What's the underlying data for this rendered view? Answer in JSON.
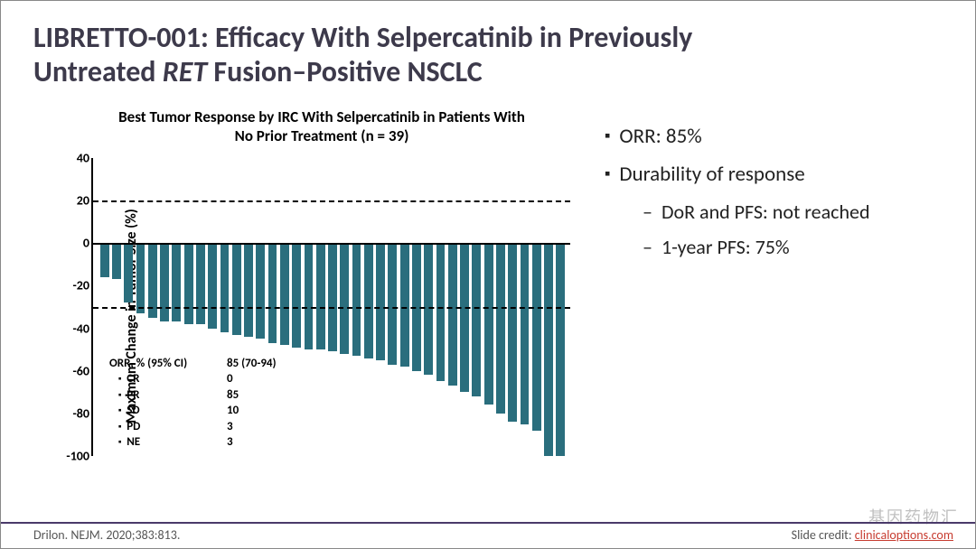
{
  "title_line1": "LIBRETTO-001: Efficacy With Selpercatinib in Previously",
  "title_line2a": "Untreated ",
  "title_line2_ital": "RET",
  "title_line2b": " Fusion–Positive NSCLC",
  "bullets": {
    "orr": "ORR: 85%",
    "dur": "Durability of response",
    "dor": "DoR and PFS: not reached",
    "pfs1y": "1-year PFS: 75%"
  },
  "footer_left": "Drilon. NEJM. 2020;383:813.",
  "footer_right_prefix": "Slide credit: ",
  "footer_link": "clinicaloptions.com",
  "watermark": "基因药物汇",
  "chart": {
    "title": "Best Tumor Response by IRC With Selpercatinib in Patients With No Prior Treatment (n = 39)",
    "ylabel": "Maximum Change in Tumor Size (%)",
    "ymin": -100,
    "ymax": 40,
    "yticks": [
      40,
      20,
      0,
      -20,
      -40,
      -60,
      -80,
      -100
    ],
    "ref_lines": [
      20,
      -30
    ],
    "bar_color": "#2a6e7d",
    "values": [
      -16,
      -17,
      -28,
      -33,
      -35,
      -37,
      -37,
      -38,
      -38,
      -40,
      -42,
      -43,
      -44,
      -45,
      -47,
      -48,
      -49,
      -50,
      -50,
      -51,
      -52,
      -53,
      -54,
      -55,
      -57,
      -58,
      -60,
      -62,
      -65,
      -67,
      -70,
      -72,
      -76,
      -80,
      -84,
      -85,
      -88,
      -100,
      -100
    ],
    "overlay": {
      "head_c1": "ORR, % (95% CI)",
      "head_c2": "85 (70-94)",
      "rows": [
        {
          "k": "CR",
          "v": "0"
        },
        {
          "k": "PR",
          "v": "85"
        },
        {
          "k": "SD",
          "v": "10"
        },
        {
          "k": "PD",
          "v": "3"
        },
        {
          "k": "NE",
          "v": "3"
        }
      ]
    }
  }
}
